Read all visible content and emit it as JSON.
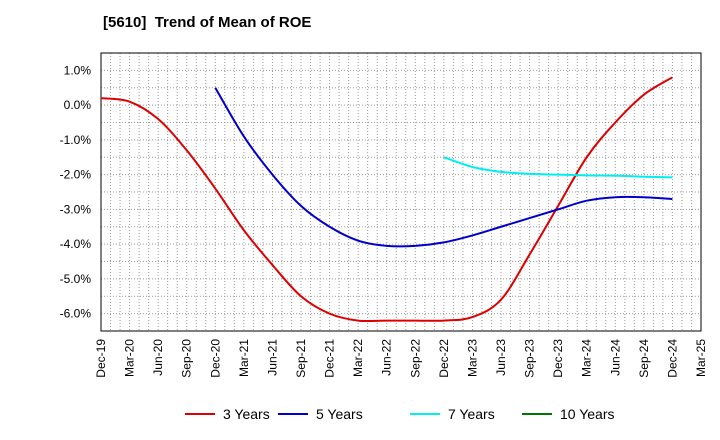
{
  "chart_data": {
    "type": "line",
    "title": "[5610]  Trend of Mean of ROE",
    "xlabel": "",
    "ylabel": "",
    "x": [
      "Dec-19",
      "Mar-20",
      "Jun-20",
      "Sep-20",
      "Dec-20",
      "Mar-21",
      "Jun-21",
      "Sep-21",
      "Dec-21",
      "Mar-22",
      "Jun-22",
      "Sep-22",
      "Dec-22",
      "Mar-23",
      "Jun-23",
      "Sep-23",
      "Dec-23",
      "Mar-24",
      "Jun-24",
      "Sep-24",
      "Dec-24",
      "Mar-25"
    ],
    "ylim": [
      -6.5,
      1.5
    ],
    "yticks": [
      1.0,
      0.0,
      -1.0,
      -2.0,
      -3.0,
      -4.0,
      -5.0,
      -6.0
    ],
    "ytick_labels": [
      "1.0%",
      "0.0%",
      "-1.0%",
      "-2.0%",
      "-3.0%",
      "-4.0%",
      "-5.0%",
      "-6.0%"
    ],
    "grid": true,
    "legend_position": "bottom",
    "series": [
      {
        "name": "3 Years",
        "color": "#dd0000",
        "values": [
          0.2,
          0.1,
          -0.4,
          -1.3,
          -2.4,
          -3.6,
          -4.6,
          -5.5,
          -6.0,
          -6.2,
          -6.2,
          -6.2,
          -6.2,
          -6.1,
          -5.6,
          -4.3,
          -2.9,
          -1.5,
          -0.5,
          0.3,
          0.8,
          null
        ]
      },
      {
        "name": "5 Years",
        "color": "#0000cc",
        "values": [
          null,
          null,
          null,
          null,
          0.5,
          -0.9,
          -2.0,
          -2.9,
          -3.5,
          -3.9,
          -4.05,
          -4.05,
          -3.95,
          -3.75,
          -3.5,
          -3.25,
          -3.0,
          -2.75,
          -2.65,
          -2.65,
          -2.7,
          null
        ]
      },
      {
        "name": "7 Years",
        "color": "#00eeee",
        "values": [
          null,
          null,
          null,
          null,
          null,
          null,
          null,
          null,
          null,
          null,
          null,
          null,
          -1.5,
          -1.78,
          -1.92,
          -1.98,
          -2.0,
          -2.02,
          -2.03,
          -2.06,
          -2.08,
          null
        ]
      },
      {
        "name": "10 Years",
        "color": "#007700",
        "values": [
          null,
          null,
          null,
          null,
          null,
          null,
          null,
          null,
          null,
          null,
          null,
          null,
          null,
          null,
          null,
          null,
          null,
          null,
          null,
          null,
          null,
          null
        ]
      }
    ]
  }
}
